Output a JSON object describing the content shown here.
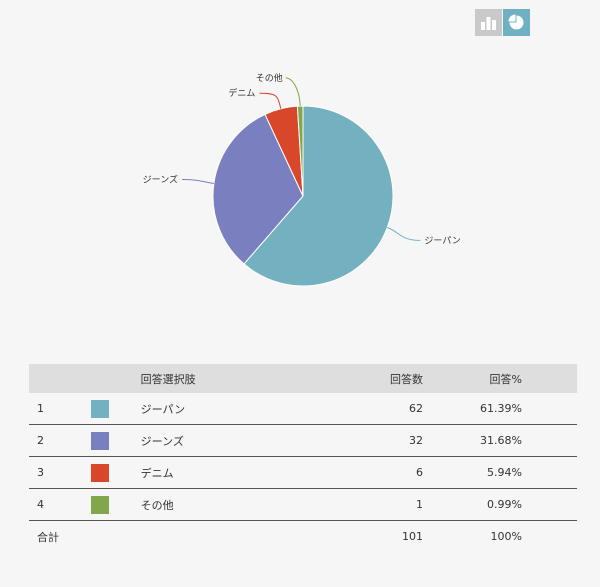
{
  "controls": {
    "bar_icon": "bar-chart-icon",
    "pie_icon": "pie-chart-icon"
  },
  "chart_data": {
    "type": "pie",
    "categories": [
      "ジーパン",
      "ジーンズ",
      "デニム",
      "その他"
    ],
    "values": [
      62,
      32,
      6,
      1
    ],
    "colors": [
      "#73b1c1",
      "#7a7fc0",
      "#d9472b",
      "#82a64b"
    ]
  },
  "table": {
    "headers": {
      "label": "回答選択肢",
      "count": "回答数",
      "percent": "回答%"
    },
    "rows": [
      {
        "index": "1",
        "label": "ジーパン",
        "count": "62",
        "percent": "61.39%",
        "color": "#73b1c1"
      },
      {
        "index": "2",
        "label": "ジーンズ",
        "count": "32",
        "percent": "31.68%",
        "color": "#7a7fc0"
      },
      {
        "index": "3",
        "label": "デニム",
        "count": "6",
        "percent": "5.94%",
        "color": "#d9472b"
      },
      {
        "index": "4",
        "label": "その他",
        "count": "1",
        "percent": "0.99%",
        "color": "#82a64b"
      }
    ],
    "total": {
      "label": "合計",
      "count": "101",
      "percent": "100%"
    }
  }
}
